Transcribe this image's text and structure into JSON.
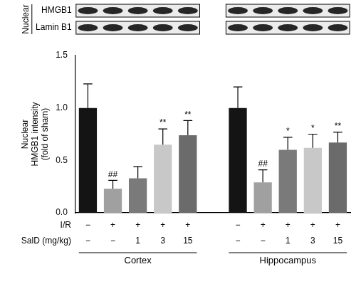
{
  "chart_data": {
    "type": "bar",
    "y_label": [
      "Nuclear",
      "HMGB1 intensity",
      "(fold of sham)"
    ],
    "ylim": [
      0,
      1.5
    ],
    "yticks": [
      {
        "value": 0,
        "label": "0.0"
      },
      {
        "value": 0.5,
        "label": "0.5"
      },
      {
        "value": 1,
        "label": "1.0"
      },
      {
        "value": 1.5,
        "label": "1.5"
      }
    ],
    "grid": false,
    "colors": [
      "#141414",
      "#a0a0a0",
      "#7a7a7a",
      "#c8c8c8",
      "#6b6b6b"
    ],
    "groups": [
      {
        "name": "Cortex",
        "values": [
          1.0,
          0.23,
          0.33,
          0.65,
          0.74
        ],
        "errors": [
          0.23,
          0.08,
          0.11,
          0.15,
          0.14
        ],
        "significance": [
          null,
          "##",
          null,
          "**",
          "**"
        ]
      },
      {
        "name": "Hippocampus",
        "values": [
          1.0,
          0.29,
          0.6,
          0.62,
          0.67
        ],
        "errors": [
          0.2,
          0.12,
          0.12,
          0.13,
          0.1
        ],
        "significance": [
          null,
          "##",
          "*",
          "*",
          "**"
        ]
      }
    ],
    "rows": [
      {
        "label": "I/R",
        "values": [
          "−",
          "+",
          "+",
          "+",
          "+"
        ]
      },
      {
        "label": "SalD (mg/kg)",
        "values": [
          "−",
          "−",
          "1",
          "3",
          "15"
        ]
      }
    ],
    "blot": {
      "side_label": "Nuclear",
      "bands": [
        "HMGB1",
        "Lamin B1"
      ]
    }
  }
}
